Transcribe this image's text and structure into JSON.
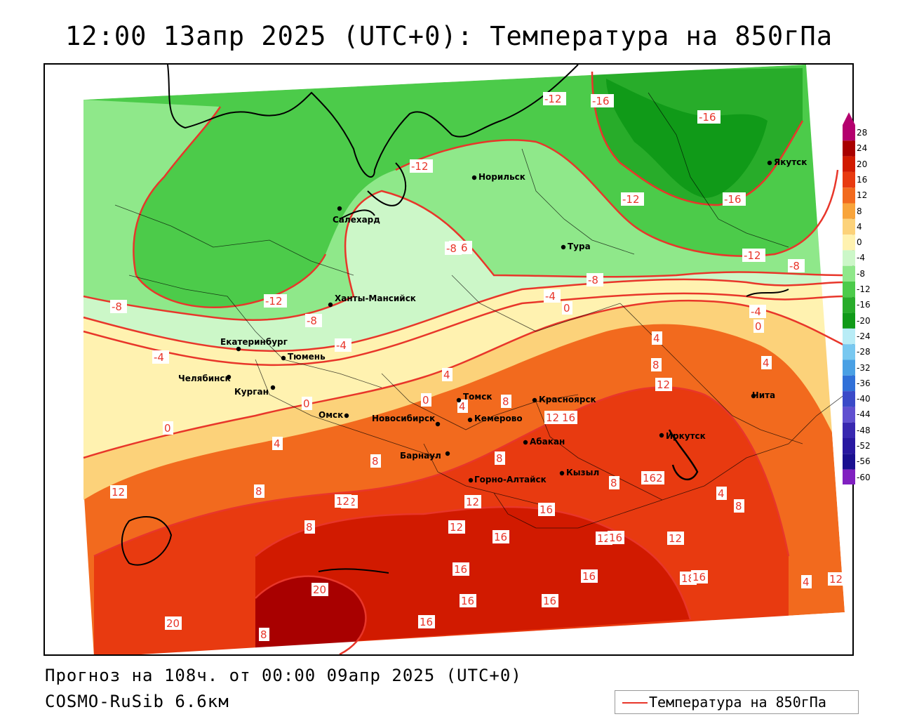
{
  "title": "12:00 13апр 2025 (UTC+0): Температура на 850гПа",
  "forecast_text": "Прогноз на 108ч. от 00:00 09апр 2025 (UTC+0)",
  "model_text": "COSMO-RuSib 6.6км",
  "legend": {
    "label": "Температура на 850гПа",
    "line_color": "#e8362a"
  },
  "colors": {
    "iso_line": "#e8362a",
    "background": "#ffffff"
  },
  "color_scale": [
    {
      "value": "28",
      "color": "#b4006e"
    },
    {
      "value": "24",
      "color": "#a80000"
    },
    {
      "value": "20",
      "color": "#d11a00"
    },
    {
      "value": "16",
      "color": "#e83a10"
    },
    {
      "value": "12",
      "color": "#f26a1e"
    },
    {
      "value": "8",
      "color": "#f8a43a"
    },
    {
      "value": "4",
      "color": "#fcd27a"
    },
    {
      "value": "0",
      "color": "#fff2b0"
    },
    {
      "value": "-4",
      "color": "#ccf7c8"
    },
    {
      "value": "-8",
      "color": "#8fe88a"
    },
    {
      "value": "-12",
      "color": "#4ccb4a"
    },
    {
      "value": "-16",
      "color": "#28ac2a"
    },
    {
      "value": "-20",
      "color": "#109a18"
    },
    {
      "value": "-24",
      "color": "#b8ecf6"
    },
    {
      "value": "-28",
      "color": "#78c8f0"
    },
    {
      "value": "-32",
      "color": "#4aa0e4"
    },
    {
      "value": "-36",
      "color": "#3070d8"
    },
    {
      "value": "-40",
      "color": "#3a4ac8"
    },
    {
      "value": "-44",
      "color": "#6050d0"
    },
    {
      "value": "-48",
      "color": "#3828b0"
    },
    {
      "value": "-52",
      "color": "#2818a0"
    },
    {
      "value": "-56",
      "color": "#1a1090"
    },
    {
      "value": "-60",
      "color": "#8020c0"
    }
  ],
  "cities": [
    {
      "name": "Норильск"
    },
    {
      "name": "Якутск"
    },
    {
      "name": "Салехард"
    },
    {
      "name": "Тура"
    },
    {
      "name": "Ханты-Мансийск"
    },
    {
      "name": "Екатеринбург"
    },
    {
      "name": "Тюмень"
    },
    {
      "name": "Челябинск"
    },
    {
      "name": "Курган"
    },
    {
      "name": "Омск"
    },
    {
      "name": "Томск"
    },
    {
      "name": "Новосибирск"
    },
    {
      "name": "Кемерово"
    },
    {
      "name": "Красноярск"
    },
    {
      "name": "Барнаул"
    },
    {
      "name": "Абакан"
    },
    {
      "name": "Горно-Алтайск"
    },
    {
      "name": "Кызыл"
    },
    {
      "name": "Иркутск"
    },
    {
      "name": "Чита"
    }
  ],
  "isoline_labels": [
    "-12",
    "-16",
    "-16",
    "-12",
    "-16",
    "-12",
    "-16",
    "-8",
    "-12",
    "-8",
    "-8",
    "-12",
    "-8",
    "-4",
    "0",
    "-4",
    "-4",
    "-8",
    "-4",
    "0",
    "4",
    "4",
    "8",
    "12",
    "4",
    "0",
    "4",
    "0",
    "0",
    "4",
    "8",
    "8",
    "12",
    "8",
    "12",
    "16",
    "162",
    "8",
    "12",
    "8",
    "4",
    "8",
    "12",
    "12",
    "16",
    "8",
    "16",
    "12",
    "12",
    "16",
    "20",
    "16",
    "16",
    "16",
    "16",
    "18",
    "16",
    "12",
    "16",
    "4",
    "12",
    "20",
    "8"
  ]
}
